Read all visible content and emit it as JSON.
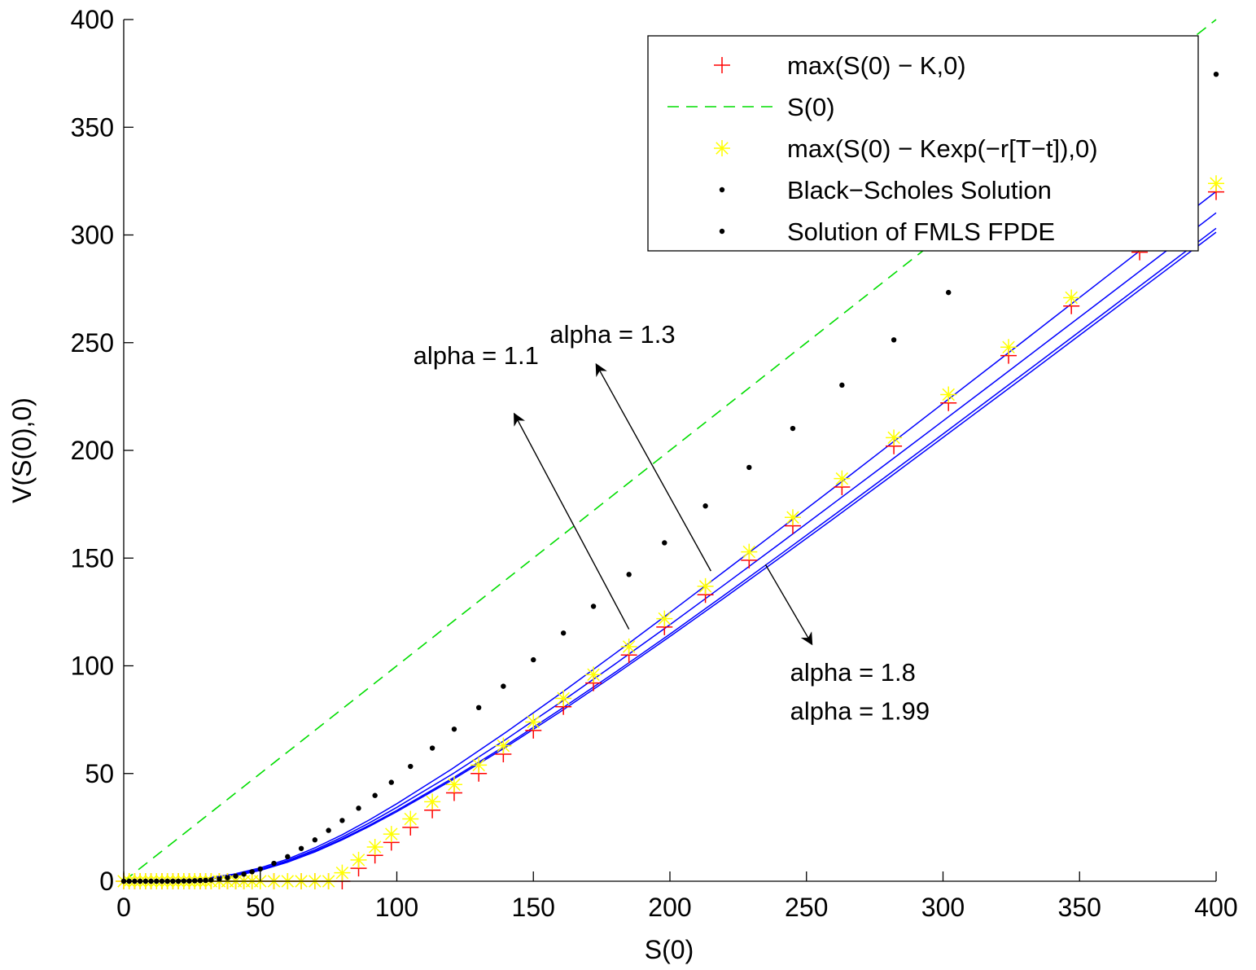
{
  "chart_data": {
    "type": "line",
    "title": "",
    "xlabel": "S(0)",
    "ylabel": "V(S(0),0)",
    "xlim": [
      0,
      400
    ],
    "ylim": [
      0,
      400
    ],
    "xticks": [
      0,
      50,
      100,
      150,
      200,
      250,
      300,
      350,
      400
    ],
    "yticks": [
      0,
      50,
      100,
      150,
      200,
      250,
      300,
      350,
      400
    ],
    "grid": false,
    "legend_position": "top-right",
    "strike": 80,
    "series": [
      {
        "name": "max(S(0) − K,0)",
        "kind": "marker-plus",
        "color": "#ff0000",
        "x": [
          0,
          2,
          4,
          6,
          8,
          10,
          12,
          14,
          16,
          18,
          20,
          22,
          24,
          26,
          28,
          30,
          32,
          35,
          38,
          41,
          44,
          47,
          50,
          55,
          60,
          65,
          70,
          75,
          80,
          86,
          92,
          98,
          105,
          113,
          121,
          130,
          139,
          150,
          161,
          172,
          185,
          198,
          213,
          229,
          245,
          263,
          282,
          302,
          324,
          347,
          372,
          400
        ],
        "y": [
          0,
          0,
          0,
          0,
          0,
          0,
          0,
          0,
          0,
          0,
          0,
          0,
          0,
          0,
          0,
          0,
          0,
          0,
          0,
          0,
          0,
          0,
          0,
          0,
          0,
          0,
          0,
          0,
          0,
          6,
          12,
          18,
          25,
          33,
          41,
          50,
          59,
          70,
          81,
          92,
          105,
          118,
          133,
          149,
          165,
          183,
          202,
          222,
          244,
          267,
          292,
          320
        ]
      },
      {
        "name": "S(0)",
        "kind": "dashed-line",
        "color": "#00dd00",
        "x": [
          0,
          400
        ],
        "y": [
          0,
          400
        ]
      },
      {
        "name": "max(S(0) − Kexp(−r[T−t]),0)",
        "kind": "marker-star",
        "color": "#ffff00",
        "x": [
          0,
          2,
          4,
          6,
          8,
          10,
          12,
          14,
          16,
          18,
          20,
          22,
          24,
          26,
          28,
          30,
          32,
          35,
          38,
          41,
          44,
          47,
          50,
          55,
          60,
          65,
          70,
          75,
          80,
          86,
          92,
          98,
          105,
          113,
          121,
          130,
          139,
          150,
          161,
          172,
          185,
          198,
          213,
          229,
          245,
          263,
          282,
          302,
          324,
          347,
          372,
          400
        ],
        "y": [
          0,
          0,
          0,
          0,
          0,
          0,
          0,
          0,
          0,
          0,
          0,
          0,
          0,
          0,
          0,
          0,
          0,
          0,
          0,
          0,
          0,
          0,
          0,
          0,
          0,
          0,
          0,
          0,
          3.9,
          9.9,
          15.9,
          21.9,
          28.9,
          36.9,
          44.9,
          53.9,
          62.9,
          73.9,
          84.9,
          95.9,
          108.9,
          121.9,
          136.9,
          152.9,
          168.9,
          186.9,
          205.9,
          225.9,
          247.9,
          270.9,
          295.9,
          323.9
        ]
      },
      {
        "name": "Black−Scholes Solution",
        "kind": "dots",
        "color": "#000000",
        "x": [
          0,
          2,
          4,
          6,
          8,
          10,
          12,
          14,
          16,
          18,
          20,
          22,
          24,
          26,
          28,
          30,
          32,
          35,
          38,
          41,
          44,
          47,
          50,
          55,
          60,
          65,
          70,
          75,
          80,
          86,
          92,
          98,
          105,
          113,
          121,
          130,
          139,
          150,
          161,
          172,
          185,
          198,
          213,
          229,
          245,
          263,
          282,
          302,
          324,
          347,
          372,
          400
        ],
        "y": [
          0,
          0,
          0,
          0,
          0,
          0,
          0,
          0,
          0,
          0,
          0,
          0.1,
          0.1,
          0.2,
          0.3,
          0.4,
          0.6,
          1,
          1.6,
          2.4,
          3.3,
          4.4,
          5.7,
          8.3,
          11.4,
          15.2,
          19.2,
          23.6,
          28.2,
          33.9,
          39.8,
          45.9,
          53.3,
          61.8,
          70.6,
          80.6,
          90.5,
          102.8,
          115.2,
          127.6,
          142.4,
          157.1,
          174.2,
          192.1,
          210.2,
          230.3,
          251.3,
          273.3,
          296.5,
          321.5,
          346.5,
          374.6
        ]
      },
      {
        "name": "Solution of FMLS FPDE",
        "kind": "solid-lines",
        "color": "#0000ff",
        "curves": [
          {
            "label": "alpha = 1.1",
            "x": [
              0,
              10,
              20,
              30,
              40,
              50,
              60,
              70,
              80,
              90,
              100,
              120,
              140,
              160,
              180,
              200,
              220,
              240,
              260,
              280,
              300,
              320,
              340,
              360,
              380,
              400
            ],
            "y": [
              0,
              0.1,
              0.4,
              1.4,
              3.2,
              6.2,
              10.3,
              15.5,
              21.6,
              28.5,
              36,
              52,
              69.2,
              87.2,
              105.8,
              124.7,
              143.9,
              163.2,
              182.6,
              202.2,
              221.8,
              241.4,
              261.1,
              280.8,
              300.5,
              320.2
            ]
          },
          {
            "label": "alpha = 1.3",
            "x": [
              0,
              10,
              20,
              30,
              40,
              50,
              60,
              70,
              80,
              90,
              100,
              120,
              140,
              160,
              180,
              200,
              220,
              240,
              260,
              280,
              300,
              320,
              340,
              360,
              380,
              400
            ],
            "y": [
              0,
              0.1,
              0.3,
              1.1,
              2.8,
              5.6,
              9.6,
              14.6,
              20.5,
              27.1,
              34.3,
              49.5,
              65.9,
              83.1,
              100.9,
              119.1,
              137.7,
              156.5,
              175.5,
              194.5,
              213.7,
              232.9,
              252.2,
              271.5,
              290.9,
              310.3
            ]
          },
          {
            "label": "alpha = 1.8",
            "x": [
              0,
              10,
              20,
              30,
              40,
              50,
              60,
              70,
              80,
              90,
              100,
              120,
              140,
              160,
              180,
              200,
              220,
              240,
              260,
              280,
              300,
              320,
              340,
              360,
              380,
              400
            ],
            "y": [
              0,
              0,
              0.2,
              0.9,
              2.5,
              5.2,
              9.1,
              14,
              19.7,
              26,
              32.9,
              47.5,
              63.1,
              79.8,
              97,
              114.7,
              132.9,
              151.3,
              169.9,
              188.7,
              207.6,
              226.6,
              245.6,
              264.7,
              283.9,
              303.1
            ]
          },
          {
            "label": "alpha = 1.99",
            "x": [
              0,
              10,
              20,
              30,
              40,
              50,
              60,
              70,
              80,
              90,
              100,
              120,
              140,
              160,
              180,
              200,
              220,
              240,
              260,
              280,
              300,
              320,
              340,
              360,
              380,
              400
            ],
            "y": [
              0,
              0,
              0.2,
              0.8,
              2.3,
              5,
              8.8,
              13.6,
              19.2,
              25.5,
              32.3,
              46.8,
              62.3,
              78.8,
              96,
              113.6,
              131.6,
              149.9,
              168.4,
              187.1,
              206,
              224.9,
              243.9,
              263,
              282.1,
              301.3
            ]
          }
        ]
      }
    ],
    "annotations": [
      {
        "text": "alpha = 1.1",
        "x": 106,
        "y": 240,
        "arrow_from": [
          185,
          117
        ],
        "arrow_to": [
          143,
          217
        ]
      },
      {
        "text": "alpha = 1.3",
        "x": 156,
        "y": 250,
        "arrow_from": [
          215,
          144
        ],
        "arrow_to": [
          173,
          240
        ]
      },
      {
        "text": "alpha = 1.8",
        "x": 244,
        "y": 93,
        "arrow_from": [
          235,
          147
        ],
        "arrow_to": [
          252,
          110
        ]
      },
      {
        "text": "alpha = 1.99",
        "x": 244,
        "y": 75
      }
    ]
  }
}
